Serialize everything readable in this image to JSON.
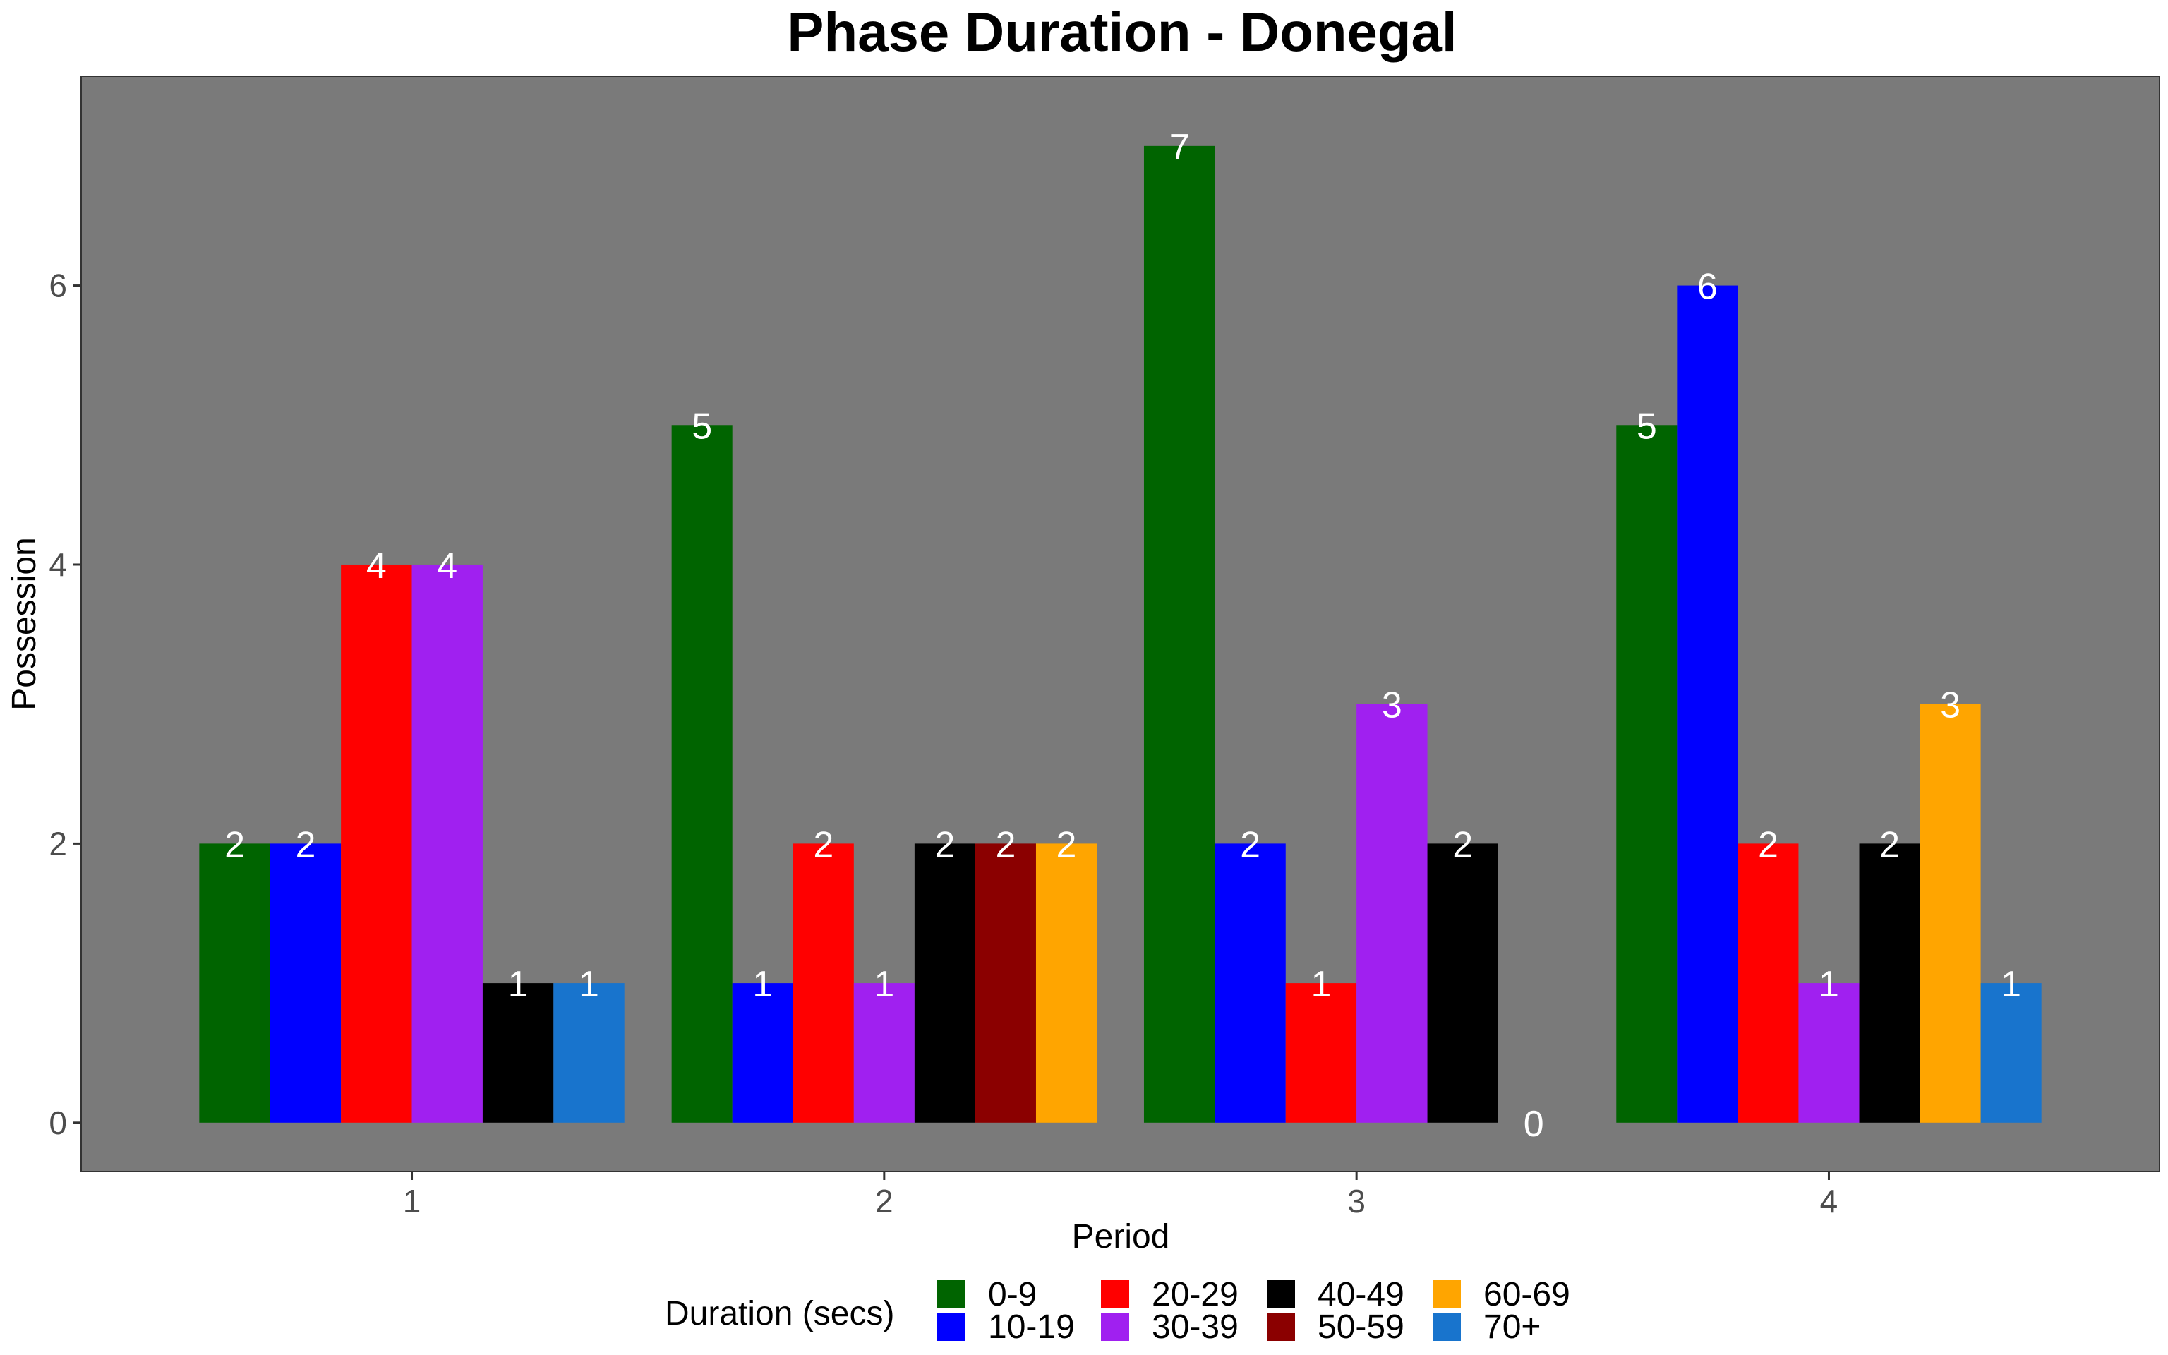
{
  "chart_data": {
    "type": "bar",
    "title": "Phase Duration - Donegal",
    "xlabel": "Period",
    "ylabel": "Possession",
    "ylim": [
      -0.35,
      7.5
    ],
    "yticks": [
      0,
      2,
      4,
      6
    ],
    "grid": false,
    "legend_position": "bottom",
    "legend_title": "Duration (secs)",
    "categories": [
      "1",
      "2",
      "3",
      "4"
    ],
    "series": [
      {
        "name": "0-9",
        "color": "#006400"
      },
      {
        "name": "10-19",
        "color": "#0000ff"
      },
      {
        "name": "20-29",
        "color": "#ff0000"
      },
      {
        "name": "30-39",
        "color": "#a020f0"
      },
      {
        "name": "40-49",
        "color": "#000000"
      },
      {
        "name": "50-59",
        "color": "#8b0000"
      },
      {
        "name": "60-69",
        "color": "#ffa500"
      },
      {
        "name": "70+",
        "color": "#1874cd"
      }
    ],
    "groups": [
      {
        "period": "1",
        "bars": [
          {
            "duration": "0-9",
            "value": 2
          },
          {
            "duration": "10-19",
            "value": 2
          },
          {
            "duration": "20-29",
            "value": 4
          },
          {
            "duration": "30-39",
            "value": 4
          },
          {
            "duration": "40-49",
            "value": 1
          },
          {
            "duration": "70+",
            "value": 1
          }
        ]
      },
      {
        "period": "2",
        "bars": [
          {
            "duration": "0-9",
            "value": 5
          },
          {
            "duration": "10-19",
            "value": 1
          },
          {
            "duration": "20-29",
            "value": 2
          },
          {
            "duration": "30-39",
            "value": 1
          },
          {
            "duration": "40-49",
            "value": 2
          },
          {
            "duration": "50-59",
            "value": 2
          },
          {
            "duration": "60-69",
            "value": 2
          }
        ]
      },
      {
        "period": "3",
        "bars": [
          {
            "duration": "0-9",
            "value": 7
          },
          {
            "duration": "10-19",
            "value": 2
          },
          {
            "duration": "20-29",
            "value": 1
          },
          {
            "duration": "30-39",
            "value": 3
          },
          {
            "duration": "40-49",
            "value": 2
          },
          {
            "duration": "70+",
            "value": 0
          }
        ]
      },
      {
        "period": "4",
        "bars": [
          {
            "duration": "0-9",
            "value": 5
          },
          {
            "duration": "10-19",
            "value": 6
          },
          {
            "duration": "20-29",
            "value": 2
          },
          {
            "duration": "30-39",
            "value": 1
          },
          {
            "duration": "40-49",
            "value": 2
          },
          {
            "duration": "60-69",
            "value": 3
          },
          {
            "duration": "70+",
            "value": 1
          }
        ]
      }
    ],
    "panel_background": "#7a7a7a",
    "label_color": "#ffffff"
  }
}
